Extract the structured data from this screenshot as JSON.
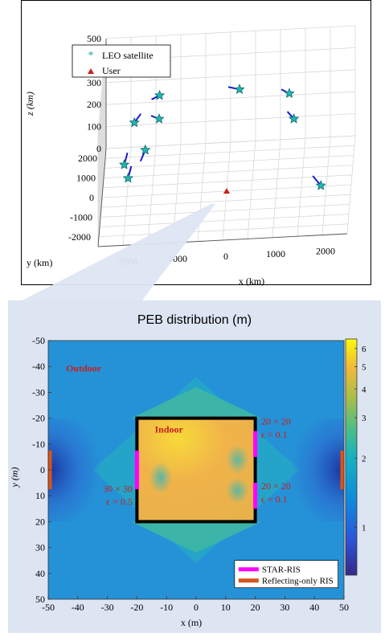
{
  "chart_data": [
    {
      "type": "scatter3d",
      "xlabel": "x (km)",
      "ylabel": "y (km)",
      "zlabel": "z (km)",
      "x_ticks": [
        "-2000",
        "-1000",
        "0",
        "1000",
        "2000"
      ],
      "y_ticks": [
        "2000",
        "1000",
        "0",
        "-1000",
        "-2000"
      ],
      "z_ticks": [
        "500",
        "400",
        "300",
        "200",
        "100",
        "0"
      ],
      "xlim": [
        -2500,
        2500
      ],
      "ylim": [
        -2500,
        2500
      ],
      "zlim": [
        0,
        500
      ],
      "grid": true,
      "legend_position": "top-left",
      "legend": [
        {
          "label": "LEO satellite",
          "marker": "star",
          "color": "#1fb5b5"
        },
        {
          "label": "User",
          "marker": "triangle",
          "color": "#cc1f1f"
        }
      ],
      "satellites": [
        {
          "x": -1700,
          "y": 2100,
          "z": 20
        },
        {
          "x": -2100,
          "y": 1400,
          "z": 20
        },
        {
          "x": -2000,
          "y": 700,
          "z": 20
        },
        {
          "x": -1900,
          "y": 1500,
          "z": 200
        },
        {
          "x": -1400,
          "y": 1400,
          "z": 220
        },
        {
          "x": -1400,
          "y": 1700,
          "z": 300
        },
        {
          "x": 200,
          "y": 1800,
          "z": 300
        },
        {
          "x": 1200,
          "y": 1800,
          "z": 270
        },
        {
          "x": 1300,
          "y": 1500,
          "z": 180
        },
        {
          "x": 1900,
          "y": -300,
          "z": 30
        }
      ],
      "user": {
        "x": 0,
        "y": 0,
        "z": 0
      }
    },
    {
      "type": "heatmap",
      "title": "PEB distribution (m)",
      "xlabel": "x (m)",
      "ylabel": "y (m)",
      "x_ticks": [
        "-50",
        "-40",
        "-30",
        "-20",
        "-10",
        "0",
        "10",
        "20",
        "30",
        "40",
        "50"
      ],
      "y_ticks": [
        "-50",
        "-40",
        "-30",
        "-20",
        "-10",
        "0",
        "10",
        "20",
        "30",
        "40",
        "50"
      ],
      "xlim": [
        -50,
        50
      ],
      "ylim": [
        -50,
        50
      ],
      "colorbar_ticks": [
        "6",
        "5",
        "4",
        "3",
        "2",
        "1"
      ],
      "colorbar_scale": "log",
      "colormap": "parula",
      "labels": {
        "outdoor": "Outdoor",
        "indoor": "Indoor",
        "ris_left_size": "30 × 30",
        "ris_left_eps": "ϵ = 0.5",
        "ris_right_top_size": "20 × 20",
        "ris_right_top_eps": "ϵ = 0.1",
        "ris_right_bottom_size": "20 × 20",
        "ris_right_bottom_eps": "ϵ = 0.1"
      },
      "legend": [
        {
          "label": "STAR-RIS",
          "color": "#ff00ff"
        },
        {
          "label": "Reflecting-only RIS",
          "color": "#d9541a"
        }
      ],
      "indoor_room": {
        "x": [
          -20,
          20
        ],
        "y": [
          -20,
          20
        ]
      }
    }
  ]
}
